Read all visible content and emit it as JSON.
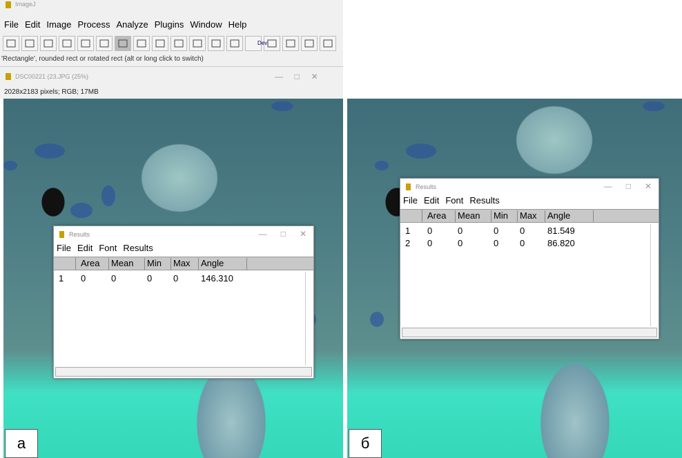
{
  "imagej": {
    "title": "ImageJ",
    "menu": [
      "File",
      "Edit",
      "Image",
      "Process",
      "Analyze",
      "Plugins",
      "Window",
      "Help"
    ],
    "toolbar_button": "Dev",
    "status": "'Rectangle', rounded rect or rotated rect (alt or long click to switch)"
  },
  "image_window": {
    "title": "DSC00221 (23.JPG (25%)",
    "info": "2028x2183 pixels; RGB; 17MB"
  },
  "panels": [
    {
      "label": "а",
      "results": {
        "title": "Results",
        "menu": [
          "File",
          "Edit",
          "Font",
          "Results"
        ],
        "columns": [
          "Area",
          "Mean",
          "Min",
          "Max",
          "Angle"
        ],
        "rows": [
          [
            "1",
            "0",
            "0",
            "0",
            "0",
            "146.310"
          ]
        ]
      }
    },
    {
      "label": "б",
      "results": {
        "title": "Results",
        "menu": [
          "File",
          "Edit",
          "Font",
          "Results"
        ],
        "columns": [
          "Area",
          "Mean",
          "Min",
          "Max",
          "Angle"
        ],
        "rows": [
          [
            "1",
            "0",
            "0",
            "0",
            "0",
            "81.549"
          ],
          [
            "2",
            "0",
            "0",
            "0",
            "0",
            "86.820"
          ]
        ]
      }
    }
  ]
}
